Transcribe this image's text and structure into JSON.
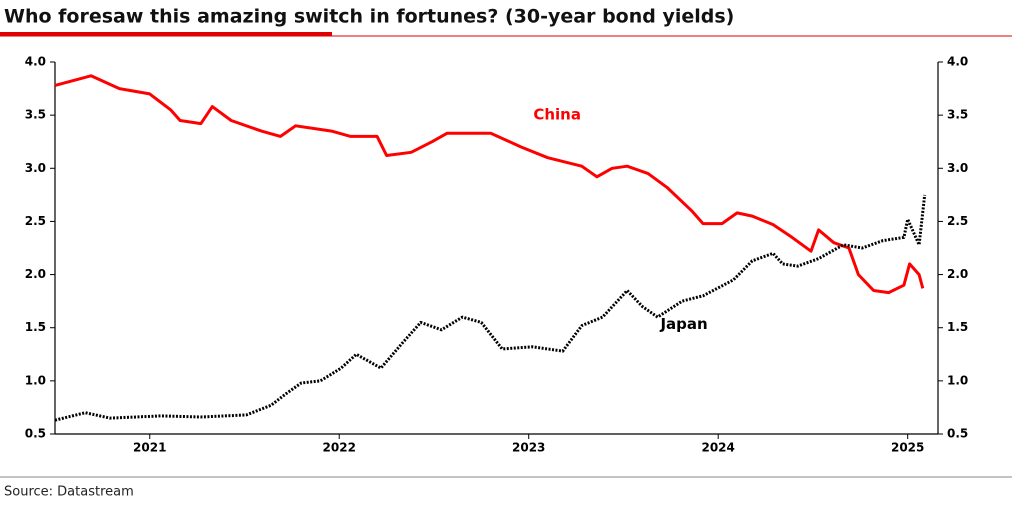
{
  "chart_data": {
    "type": "line",
    "title": "Who foresaw this amazing switch in fortunes? (30-year bond yields)",
    "source": "Source: Datastream",
    "xlim": [
      2020.5,
      2025.16
    ],
    "xticks": [
      2021,
      2022,
      2023,
      2024,
      2025
    ],
    "ylim": [
      0.5,
      4.0
    ],
    "yticks": [
      0.5,
      {
        "value": 1.0,
        "label": "1.0"
      },
      1.5,
      {
        "value": 2.0,
        "label": "2.0"
      },
      2.5,
      {
        "value": 3.0,
        "label": "3.0"
      },
      3.5,
      {
        "value": 4.0,
        "label": "4.0"
      }
    ],
    "series": [
      {
        "name": "China",
        "color": "#ff0000",
        "style": "solid",
        "x": [
          2020.5,
          2020.69,
          2020.84,
          2021.0,
          2021.11,
          2021.16,
          2021.27,
          2021.33,
          2021.43,
          2021.59,
          2021.69,
          2021.77,
          2021.96,
          2022.06,
          2022.2,
          2022.25,
          2022.38,
          2022.49,
          2022.57,
          2022.8,
          2022.96,
          2023.1,
          2023.28,
          2023.36,
          2023.44,
          2023.52,
          2023.63,
          2023.73,
          2023.86,
          2023.92,
          2024.02,
          2024.1,
          2024.18,
          2024.29,
          2024.39,
          2024.49,
          2024.53,
          2024.61,
          2024.69,
          2024.74,
          2024.82,
          2024.9,
          2024.98,
          2025.01,
          2025.06,
          2025.08
        ],
        "values": [
          3.78,
          3.87,
          3.75,
          3.7,
          3.55,
          3.45,
          3.42,
          3.58,
          3.45,
          3.35,
          3.3,
          3.4,
          3.35,
          3.3,
          3.3,
          3.12,
          3.15,
          3.25,
          3.33,
          3.33,
          3.2,
          3.1,
          3.02,
          2.92,
          3.0,
          3.02,
          2.95,
          2.82,
          2.6,
          2.48,
          2.48,
          2.58,
          2.55,
          2.47,
          2.35,
          2.22,
          2.42,
          2.3,
          2.25,
          2.0,
          1.85,
          1.83,
          1.9,
          2.1,
          2.0,
          1.87
        ]
      },
      {
        "name": "Japan",
        "color": "#000000",
        "style": "dotted",
        "x": [
          2020.5,
          2020.66,
          2020.79,
          2021.06,
          2021.27,
          2021.51,
          2021.64,
          2021.72,
          2021.8,
          2021.9,
          2022.01,
          2022.09,
          2022.22,
          2022.33,
          2022.43,
          2022.54,
          2022.65,
          2022.75,
          2022.86,
          2023.02,
          2023.18,
          2023.28,
          2023.39,
          2023.52,
          2023.6,
          2023.68,
          2023.81,
          2023.92,
          2024.08,
          2024.18,
          2024.29,
          2024.34,
          2024.42,
          2024.53,
          2024.66,
          2024.76,
          2024.87,
          2024.98,
          2025.0,
          2025.06,
          2025.09
        ],
        "values": [
          0.63,
          0.7,
          0.65,
          0.67,
          0.66,
          0.68,
          0.77,
          0.88,
          0.98,
          1.0,
          1.12,
          1.25,
          1.12,
          1.35,
          1.55,
          1.48,
          1.6,
          1.55,
          1.3,
          1.32,
          1.28,
          1.52,
          1.6,
          1.85,
          1.7,
          1.6,
          1.75,
          1.8,
          1.95,
          2.13,
          2.2,
          2.1,
          2.08,
          2.15,
          2.28,
          2.25,
          2.32,
          2.35,
          2.52,
          2.28,
          2.75
        ]
      }
    ],
    "annotations": [
      {
        "text": "China",
        "x": 2023.15,
        "y": 3.5,
        "color": "#ff0000"
      },
      {
        "text": "Japan",
        "x": 2023.82,
        "y": 1.53,
        "color": "#000000"
      }
    ]
  }
}
